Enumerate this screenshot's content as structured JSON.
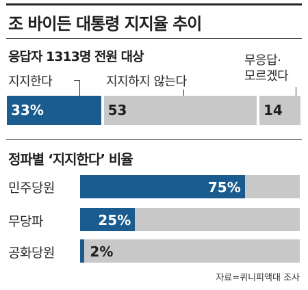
{
  "title": "조 바이든 대통령 지지율 추이",
  "source": "자료=퀴니피액대 조사",
  "colors": {
    "accent": "#1a5c8f",
    "neutral": "#c8c8c8",
    "text": "#1e1e1e"
  },
  "chart_data": [
    {
      "type": "bar",
      "subtitle": "응답자 1313명 전원 대상",
      "stacked": true,
      "orientation": "horizontal",
      "series": [
        {
          "name": "지지한다",
          "value": 33,
          "value_label": "33%",
          "color": "#1a5c8f"
        },
        {
          "name": "지지하지 않는다",
          "value": 53,
          "value_label": "53",
          "color": "#c8c8c8"
        },
        {
          "name": "무응답·\n모르겠다",
          "value": 14,
          "value_label": "14",
          "color": "#c8c8c8"
        }
      ]
    },
    {
      "type": "bar",
      "subtitle": "정파별 ‘지지한다’ 비율",
      "orientation": "horizontal",
      "xlim": [
        0,
        100
      ],
      "categories": [
        "민주당원",
        "무당파",
        "공화당원"
      ],
      "values": [
        75,
        25,
        2
      ],
      "value_labels": [
        "75%",
        "25%",
        "2%"
      ]
    }
  ]
}
